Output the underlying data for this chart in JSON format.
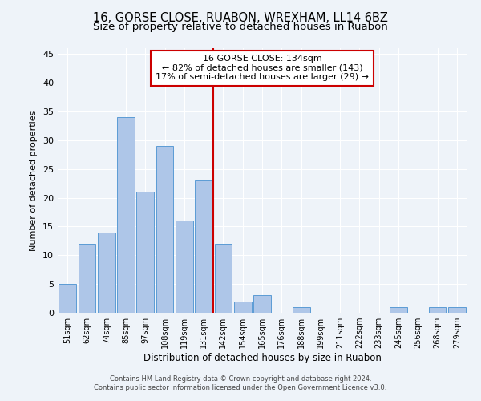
{
  "title": "16, GORSE CLOSE, RUABON, WREXHAM, LL14 6BZ",
  "subtitle": "Size of property relative to detached houses in Ruabon",
  "xlabel": "Distribution of detached houses by size in Ruabon",
  "ylabel": "Number of detached properties",
  "bar_labels": [
    "51sqm",
    "62sqm",
    "74sqm",
    "85sqm",
    "97sqm",
    "108sqm",
    "119sqm",
    "131sqm",
    "142sqm",
    "154sqm",
    "165sqm",
    "176sqm",
    "188sqm",
    "199sqm",
    "211sqm",
    "222sqm",
    "233sqm",
    "245sqm",
    "256sqm",
    "268sqm",
    "279sqm"
  ],
  "bar_values": [
    5,
    12,
    14,
    34,
    21,
    29,
    16,
    23,
    12,
    2,
    3,
    0,
    1,
    0,
    0,
    0,
    0,
    1,
    0,
    1,
    1
  ],
  "bar_color": "#aec6e8",
  "bar_edgecolor": "#5b9bd5",
  "vline_color": "#cc0000",
  "annotation_title": "16 GORSE CLOSE: 134sqm",
  "annotation_line1": "← 82% of detached houses are smaller (143)",
  "annotation_line2": "17% of semi-detached houses are larger (29) →",
  "annotation_box_edgecolor": "#cc0000",
  "annotation_box_facecolor": "#ffffff",
  "ylim": [
    0,
    46
  ],
  "yticks": [
    0,
    5,
    10,
    15,
    20,
    25,
    30,
    35,
    40,
    45
  ],
  "bg_color": "#eef3f9",
  "axes_bg_color": "#eef3f9",
  "footer1": "Contains HM Land Registry data © Crown copyright and database right 2024.",
  "footer2": "Contains public sector information licensed under the Open Government Licence v3.0.",
  "title_fontsize": 10.5,
  "subtitle_fontsize": 9.5,
  "xlabel_fontsize": 8.5,
  "ylabel_fontsize": 8
}
